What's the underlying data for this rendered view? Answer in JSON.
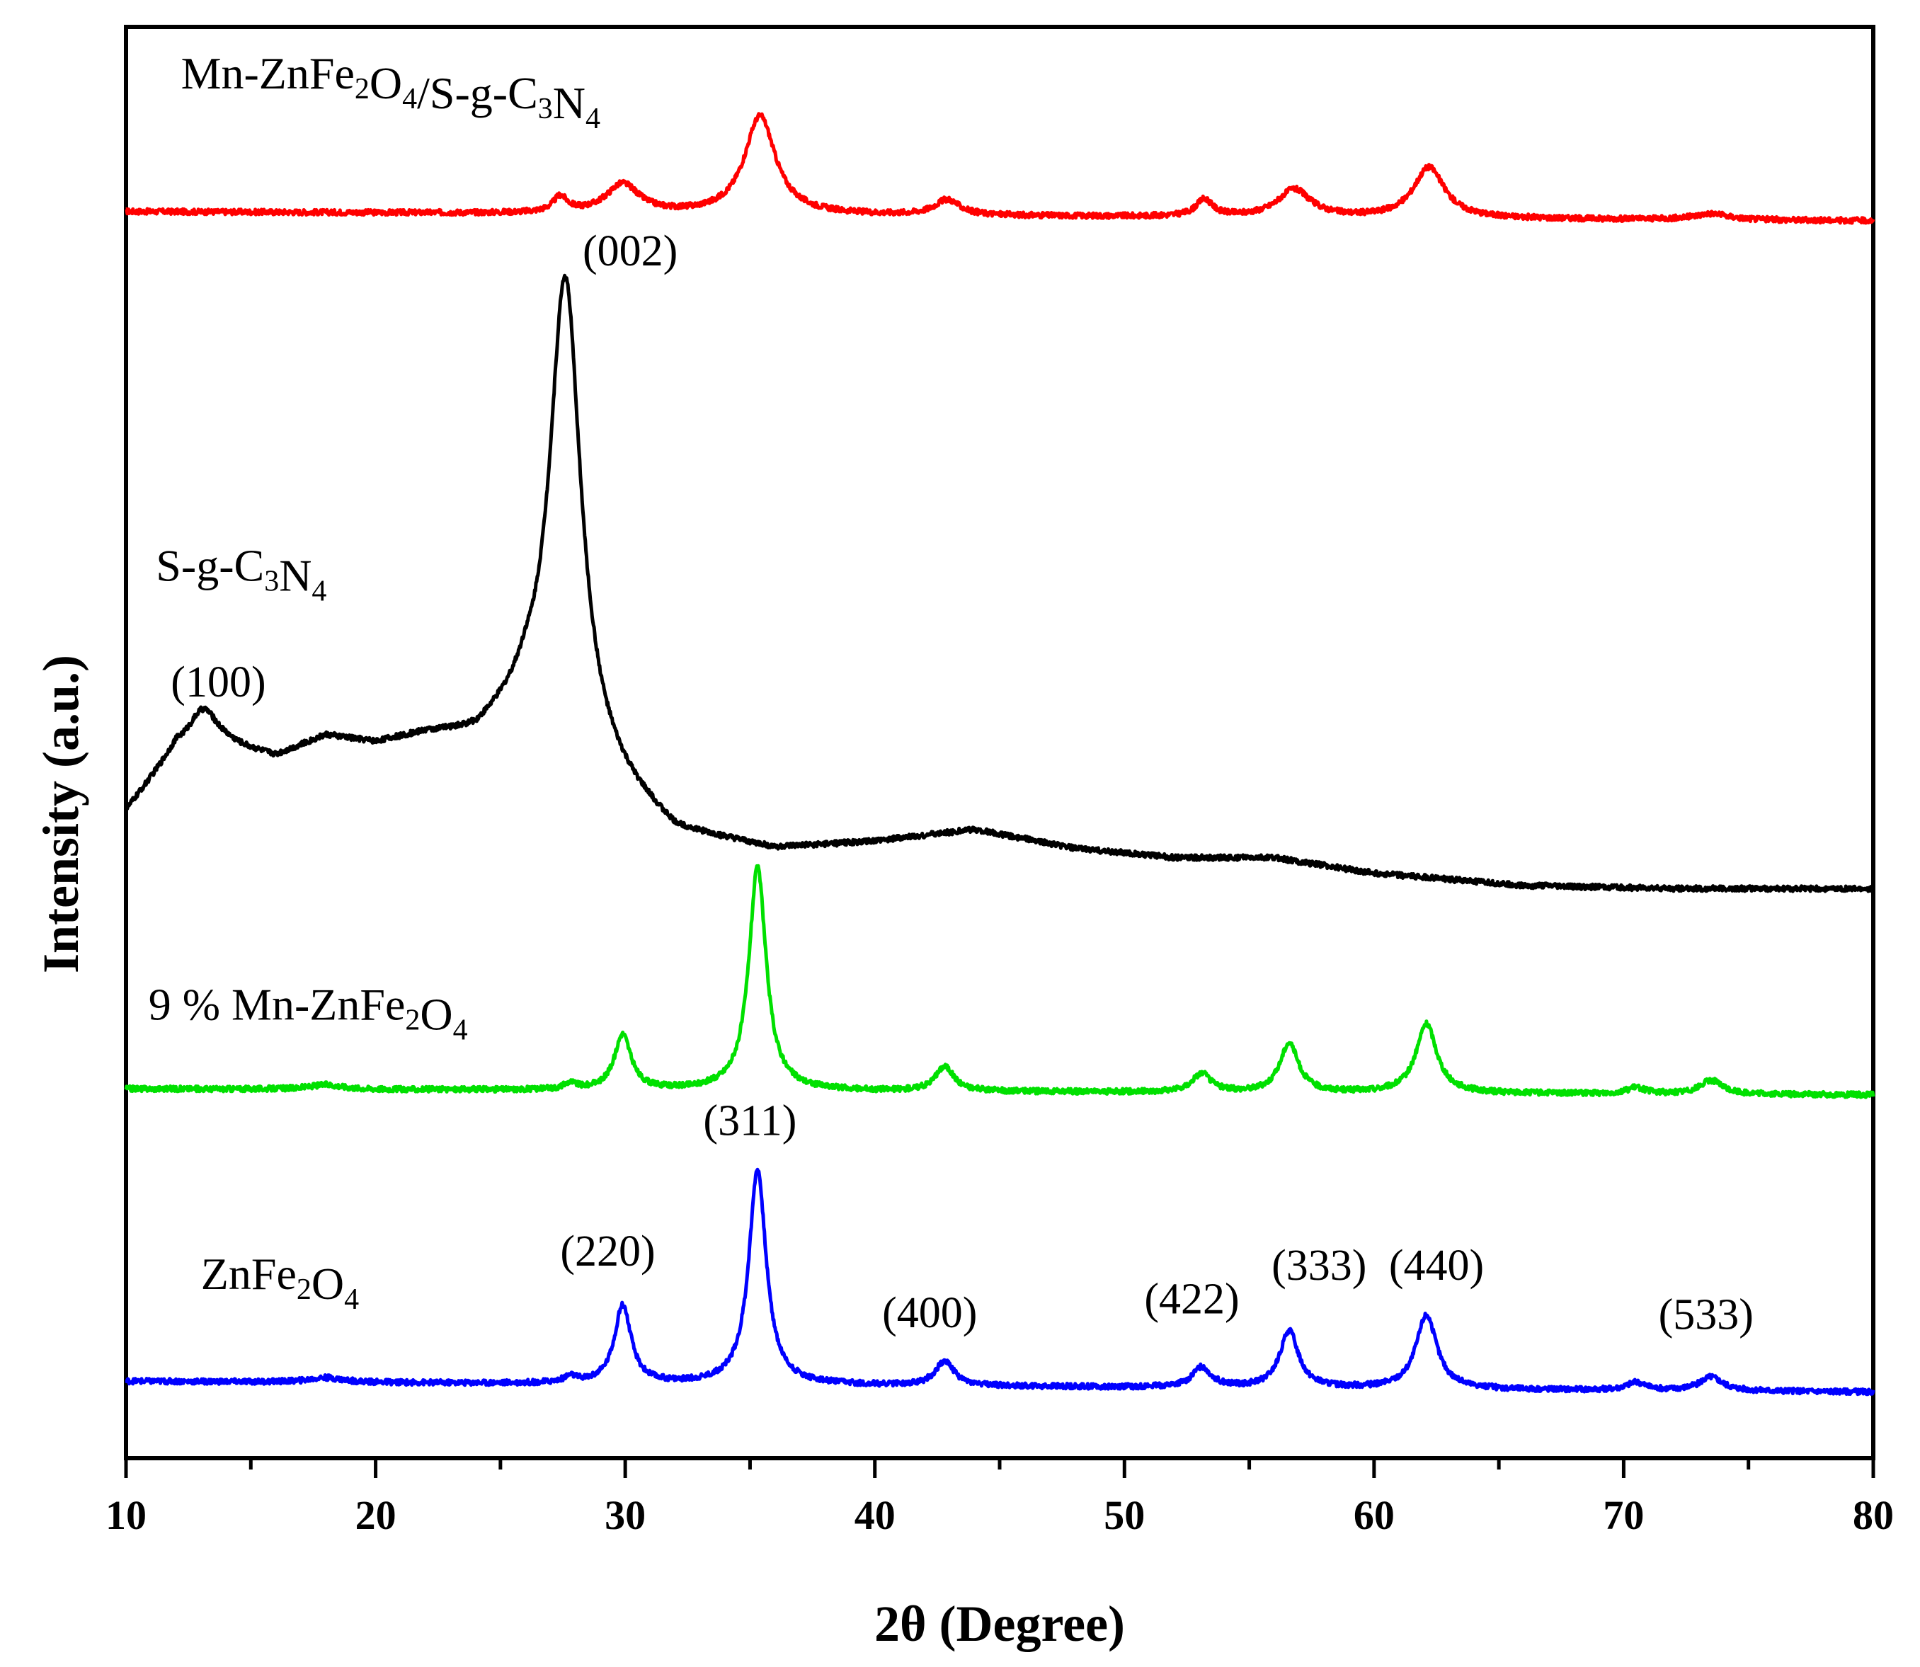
{
  "chart_data": {
    "type": "line",
    "xlabel": "2θ (Degree)",
    "ylabel": "Intensity (a.u.)",
    "xlim": [
      10,
      80
    ],
    "xticks": [
      "10",
      "20",
      "30",
      "40",
      "50",
      "60",
      "70",
      "80"
    ],
    "grid": false,
    "series": [
      {
        "label_parts": [
          {
            "t": "Mn-ZnFe"
          },
          {
            "t": "2",
            "sub": true
          },
          {
            "t": "O"
          },
          {
            "t": "4",
            "sub": true
          },
          {
            "t": "/S-g-C"
          },
          {
            "t": "3",
            "sub": true
          },
          {
            "t": "N"
          },
          {
            "t": "4",
            "sub": true
          }
        ],
        "color": "#ff0000",
        "baseline": [
          [
            10,
            0.0
          ],
          [
            80,
            -0.6
          ]
        ],
        "peaks": [
          {
            "x": 27.4,
            "h": 1.0,
            "w": 0.35
          },
          {
            "x": 29.9,
            "h": 1.9,
            "w": 0.8
          },
          {
            "x": 35.4,
            "h": 6.4,
            "w": 0.75
          },
          {
            "x": 42.9,
            "h": 1.0,
            "w": 0.6
          },
          {
            "x": 53.2,
            "h": 1.1,
            "w": 0.4
          },
          {
            "x": 56.8,
            "h": 1.8,
            "w": 0.8
          },
          {
            "x": 62.2,
            "h": 3.3,
            "w": 0.75
          },
          {
            "x": 73.5,
            "h": 0.4,
            "w": 0.8
          }
        ]
      },
      {
        "label_parts": [
          {
            "t": "S-g-C"
          },
          {
            "t": "3",
            "sub": true
          },
          {
            "t": "N"
          },
          {
            "t": "4",
            "sub": true
          }
        ],
        "color": "#000000",
        "baseline": [
          [
            10,
            -39.0
          ],
          [
            12,
            -35.0
          ],
          [
            14,
            -34.8
          ],
          [
            16,
            -35.5
          ],
          [
            18,
            -34.2
          ],
          [
            20,
            -34.7
          ],
          [
            22,
            -34.2
          ],
          [
            24,
            -34.3
          ],
          [
            26,
            -32.5
          ],
          [
            30,
            -38.0
          ],
          [
            32,
            -40.5
          ],
          [
            36,
            -41.5
          ],
          [
            40,
            -41.0
          ],
          [
            44,
            -40.2
          ],
          [
            48,
            -41.4
          ],
          [
            52,
            -42.0
          ],
          [
            56,
            -42.0
          ],
          [
            60,
            -43.0
          ],
          [
            66,
            -43.8
          ],
          [
            72,
            -44.0
          ],
          [
            80,
            -44.0
          ]
        ],
        "peaks": [
          {
            "x": 13.1,
            "h": 2.5,
            "w": 0.7
          },
          {
            "x": 27.6,
            "h": 30.5,
            "w": 0.75
          }
        ]
      },
      {
        "label_parts": [
          {
            "t": "9 % Mn-ZnFe"
          },
          {
            "t": "2",
            "sub": true
          },
          {
            "t": "O"
          },
          {
            "t": "4",
            "sub": true
          }
        ],
        "color": "#00e000",
        "baseline": [
          [
            10,
            -57.0
          ],
          [
            80,
            -57.4
          ]
        ],
        "peaks": [
          {
            "x": 18.0,
            "h": 0.3,
            "w": 0.8
          },
          {
            "x": 27.8,
            "h": 0.4,
            "w": 0.3
          },
          {
            "x": 29.9,
            "h": 3.6,
            "w": 0.4
          },
          {
            "x": 35.3,
            "h": 14.5,
            "w": 0.42
          },
          {
            "x": 42.8,
            "h": 1.6,
            "w": 0.45
          },
          {
            "x": 53.1,
            "h": 1.2,
            "w": 0.45
          },
          {
            "x": 56.6,
            "h": 3.2,
            "w": 0.45
          },
          {
            "x": 62.1,
            "h": 4.5,
            "w": 0.5
          },
          {
            "x": 70.5,
            "h": 0.4,
            "w": 0.45
          },
          {
            "x": 73.5,
            "h": 0.9,
            "w": 0.55
          }
        ]
      },
      {
        "label_parts": [
          {
            "t": "ZnFe"
          },
          {
            "t": "2",
            "sub": true
          },
          {
            "t": "O"
          },
          {
            "t": "4",
            "sub": true
          }
        ],
        "color": "#0000ff",
        "baseline": [
          [
            10,
            -76.0
          ],
          [
            80,
            -76.7
          ]
        ],
        "peaks": [
          {
            "x": 18.0,
            "h": 0.3,
            "w": 0.8
          },
          {
            "x": 27.8,
            "h": 0.4,
            "w": 0.3
          },
          {
            "x": 29.9,
            "h": 5.1,
            "w": 0.4
          },
          {
            "x": 35.3,
            "h": 14.0,
            "w": 0.42
          },
          {
            "x": 42.8,
            "h": 1.6,
            "w": 0.45
          },
          {
            "x": 53.1,
            "h": 1.3,
            "w": 0.45
          },
          {
            "x": 56.6,
            "h": 3.7,
            "w": 0.45
          },
          {
            "x": 62.1,
            "h": 4.8,
            "w": 0.5
          },
          {
            "x": 70.5,
            "h": 0.5,
            "w": 0.45
          },
          {
            "x": 73.5,
            "h": 0.9,
            "w": 0.55
          }
        ]
      }
    ],
    "annotations": [
      {
        "text": "(002)",
        "x": 30.2,
        "y": -3.5
      },
      {
        "text": "(100)",
        "x": 13.7,
        "y": -31.5
      },
      {
        "text": "(311)",
        "x": 35.0,
        "y": -60.0
      },
      {
        "text": "(220)",
        "x": 29.3,
        "y": -68.5
      },
      {
        "text": "(400)",
        "x": 42.2,
        "y": -72.5
      },
      {
        "text": "(422)",
        "x": 52.7,
        "y": -71.6
      },
      {
        "text": "(333)",
        "x": 57.8,
        "y": -69.4
      },
      {
        "text": "(440)",
        "x": 62.5,
        "y": -69.4
      },
      {
        "text": "(533)",
        "x": 73.3,
        "y": -72.6
      }
    ],
    "series_label_positions": [
      {
        "x": 12.2,
        "y": 8.0
      },
      {
        "x": 11.2,
        "y": -24.0
      },
      {
        "x": 10.9,
        "y": -52.5
      },
      {
        "x": 13.0,
        "y": -70.0
      }
    ],
    "ylim": [
      -81.0,
      12.0
    ]
  }
}
